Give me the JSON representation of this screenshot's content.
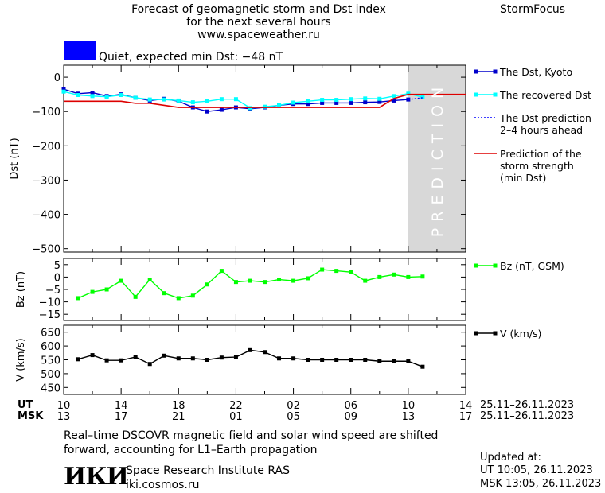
{
  "header": {
    "title_line1": "Forecast of geomagnetic storm and Dst index",
    "title_line2": "for the next several hours",
    "website": "www.spaceweather.ru",
    "brand": "StormFocus",
    "status_color": "#0000ff",
    "status_text": "Quiet, expected min Dst: −48 nT"
  },
  "legend": {
    "dst_kyoto": "The Dst, Kyoto",
    "dst_recovered": "The recovered Dst",
    "dst_prediction_l1": "The Dst prediction",
    "dst_prediction_l2": "2–4 hours ahead",
    "storm_l1": "Prediction of the",
    "storm_l2": "storm strength",
    "storm_l3": "(min Dst)",
    "bz": "Bz (nT, GSM)",
    "v": "V (km/s)"
  },
  "prediction_label": "PREDICTION",
  "time_axis": {
    "ut_label": "UT",
    "msk_label": "MSK",
    "ut_ticks": [
      "10",
      "14",
      "18",
      "22",
      "02",
      "06",
      "10",
      "14"
    ],
    "msk_ticks": [
      "13",
      "17",
      "21",
      "01",
      "05",
      "09",
      "13",
      "17"
    ],
    "ut_range": "25.11–26.11.2023",
    "msk_range": "25.11–26.11.2023"
  },
  "footer": {
    "note_l1": "Real–time DSCOVR magnetic field and solar wind speed are shifted",
    "note_l2": "forward, accounting for L1–Earth propagation",
    "org_logo": "ИКИ",
    "org_name": "Space Research Institute RAS",
    "org_url": "iki.cosmos.ru",
    "updated_label": "Updated at:",
    "updated_ut": "UT   10:05, 26.11.2023",
    "updated_msk": "MSK 13:05, 26.11.2023"
  },
  "chart_data": [
    {
      "type": "line",
      "ylabel": "Dst (nT)",
      "ylim": [
        -510,
        35
      ],
      "yticks": [
        0,
        -100,
        -200,
        -300,
        -400,
        -500
      ],
      "xlim": [
        0,
        28
      ],
      "prediction_start": 24,
      "series": [
        {
          "name": "The Dst, Kyoto",
          "color": "#0000cc",
          "x": [
            0,
            1,
            2,
            3,
            4,
            5,
            6,
            7,
            8,
            9,
            10,
            11,
            12,
            13,
            14,
            15,
            16,
            17,
            18,
            19,
            20,
            21,
            22,
            23,
            24
          ],
          "y": [
            -35,
            -48,
            -45,
            -55,
            -50,
            -60,
            -68,
            -63,
            -70,
            -88,
            -100,
            -95,
            -88,
            -92,
            -88,
            -82,
            -78,
            -78,
            -75,
            -75,
            -75,
            -73,
            -72,
            -68,
            -65
          ]
        },
        {
          "name": "The recovered Dst",
          "color": "#00ffff",
          "x": [
            0,
            1,
            2,
            3,
            4,
            5,
            6,
            7,
            8,
            9,
            10,
            11,
            12,
            13,
            14,
            15,
            16,
            17,
            18,
            19,
            20,
            21,
            22,
            23,
            24,
            25
          ],
          "y": [
            -42,
            -52,
            -55,
            -57,
            -52,
            -60,
            -65,
            -65,
            -68,
            -73,
            -70,
            -64,
            -64,
            -90,
            -86,
            -82,
            -74,
            -70,
            -66,
            -66,
            -64,
            -62,
            -63,
            -55,
            -48,
            -58
          ]
        },
        {
          "name": "The Dst prediction 2–4 hours ahead",
          "color": "#0000ff",
          "x": [
            24,
            25
          ],
          "y": [
            -65,
            -60
          ]
        },
        {
          "name": "Prediction of the storm strength (min Dst)",
          "color": "#dd0000",
          "x": [
            0,
            2,
            4,
            5,
            6,
            7,
            8,
            10,
            12,
            14,
            15,
            16,
            18,
            19,
            20,
            21,
            22,
            23,
            24,
            25,
            28
          ],
          "y": [
            -70,
            -70,
            -70,
            -76,
            -76,
            -82,
            -88,
            -88,
            -88,
            -88,
            -88,
            -88,
            -88,
            -88,
            -88,
            -88,
            -88,
            -62,
            -50,
            -50,
            -50
          ]
        }
      ]
    },
    {
      "type": "line",
      "ylabel": "Bz (nT)",
      "ylim": [
        -17.5,
        7.5
      ],
      "yticks": [
        5,
        0,
        -5,
        -10,
        -15
      ],
      "xlim": [
        0,
        28
      ],
      "series": [
        {
          "name": "Bz (nT, GSM)",
          "color": "#00ff00",
          "x": [
            1,
            2,
            3,
            4,
            5,
            6,
            7,
            8,
            9,
            10,
            11,
            12,
            13,
            14,
            15,
            16,
            17,
            18,
            19,
            20,
            21,
            22,
            23,
            24,
            25
          ],
          "y": [
            -8.5,
            -6,
            -5,
            -1.5,
            -8,
            -1,
            -6.5,
            -8.5,
            -7.5,
            -3,
            2.5,
            -2,
            -1.5,
            -2,
            -1,
            -1.5,
            -0.5,
            3,
            2.5,
            2,
            -1.5,
            0,
            1,
            0,
            0.2
          ]
        }
      ]
    },
    {
      "type": "line",
      "ylabel": "V (km/s)",
      "ylim": [
        425,
        675
      ],
      "yticks": [
        650,
        600,
        550,
        500,
        450
      ],
      "xlim": [
        0,
        28
      ],
      "series": [
        {
          "name": "V (km/s)",
          "color": "#000000",
          "x": [
            1,
            2,
            3,
            4,
            5,
            6,
            7,
            8,
            9,
            10,
            11,
            12,
            13,
            14,
            15,
            16,
            17,
            18,
            19,
            20,
            21,
            22,
            23,
            24,
            25
          ],
          "y": [
            552,
            567,
            548,
            548,
            560,
            535,
            565,
            555,
            555,
            550,
            558,
            560,
            585,
            578,
            555,
            555,
            550,
            550,
            550,
            550,
            550,
            545,
            545,
            545,
            525
          ]
        }
      ]
    }
  ]
}
